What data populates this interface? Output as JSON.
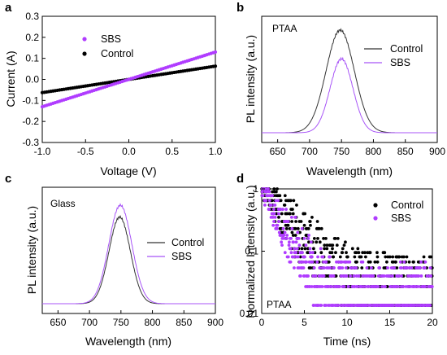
{
  "colors": {
    "control": "#000000",
    "sbs": "#b03cff",
    "sbs_line": "#a855f7",
    "control_line": "#333333"
  },
  "chart_data": [
    {
      "panel": "a",
      "type": "scatter",
      "xlabel": "Voltage (V)",
      "ylabel": "Current (A)",
      "xlim": [
        -1.0,
        1.0
      ],
      "ylim": [
        -0.3,
        0.3
      ],
      "xticks": [
        "-1.0",
        "-0.5",
        "0.0",
        "0.5",
        "1.0"
      ],
      "yticks": [
        "-0.3",
        "-0.2",
        "-0.1",
        "0.0",
        "0.1",
        "0.2",
        "0.3"
      ],
      "legend_placement": "upper-left",
      "series": [
        {
          "name": "SBS",
          "x_range": [
            -1.0,
            1.0
          ],
          "slope": 0.13,
          "intercept": 0.0
        },
        {
          "name": "Control",
          "x_range": [
            -1.0,
            1.0
          ],
          "slope": 0.063,
          "intercept": 0.0
        }
      ]
    },
    {
      "panel": "b",
      "type": "line",
      "annotation": "PTAA",
      "xlabel": "Wavelength (nm)",
      "ylabel": "PL intensity (a.u.)",
      "xlim": [
        625,
        900
      ],
      "xticks": [
        "650",
        "700",
        "750",
        "800",
        "850",
        "900"
      ],
      "legend_placement": "upper-right",
      "series": [
        {
          "name": "Control",
          "peak_nm": 748,
          "fwhm_nm": 52,
          "peak_rel": 1.0
        },
        {
          "name": "SBS",
          "peak_nm": 750,
          "fwhm_nm": 42,
          "peak_rel": 0.72
        }
      ]
    },
    {
      "panel": "c",
      "type": "line",
      "annotation": "Glass",
      "xlabel": "Wavelength (nm)",
      "ylabel": "PL intensity (a.u.)",
      "xlim": [
        625,
        900
      ],
      "xticks": [
        "650",
        "700",
        "750",
        "800",
        "850",
        "900"
      ],
      "legend_placement": "center-right",
      "series": [
        {
          "name": "Control",
          "peak_nm": 748,
          "fwhm_nm": 40,
          "peak_rel": 0.88
        },
        {
          "name": "SBS",
          "peak_nm": 749,
          "fwhm_nm": 43,
          "peak_rel": 1.0
        }
      ]
    },
    {
      "panel": "d",
      "type": "scatter",
      "annotation": "PTAA",
      "xlabel": "Time (ns)",
      "ylabel": "Normalized Intensity (a.u.)",
      "xlim": [
        0,
        20
      ],
      "ylim": [
        0.01,
        1
      ],
      "y_scale": "log",
      "xticks": [
        "0",
        "5",
        "10",
        "15",
        "20"
      ],
      "yticks": [
        "0.01",
        "0.1",
        "1"
      ],
      "legend_placement": "upper-right",
      "series": [
        {
          "name": "Control",
          "tau_ns": 2.4,
          "floor": 0.05
        },
        {
          "name": "SBS",
          "tau_ns": 1.7,
          "floor": 0.035
        }
      ]
    }
  ]
}
